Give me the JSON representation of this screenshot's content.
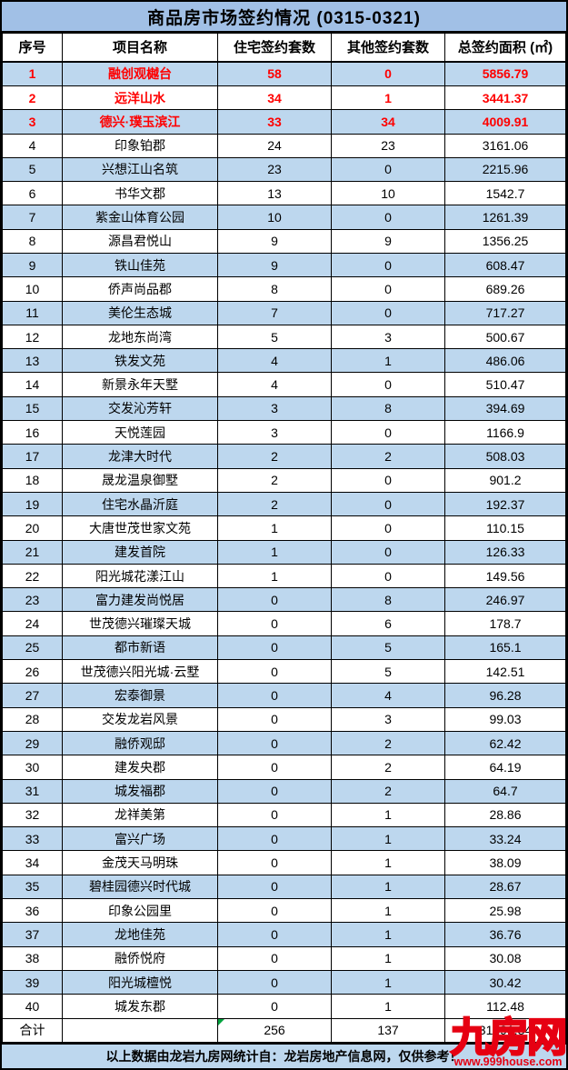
{
  "title": "商品房市场签约情况 (0315-0321)",
  "chart_data": {
    "type": "table",
    "title": "商品房市场签约情况 (0315-0321)",
    "columns": [
      "序号",
      "项目名称",
      "住宅签约套数",
      "其他签约套数",
      "总签约面积 (㎡)"
    ],
    "highlight_top_rows": 3,
    "rows": [
      [
        "1",
        "融创观樾台",
        "58",
        "0",
        "5856.79"
      ],
      [
        "2",
        "远洋山水",
        "34",
        "1",
        "3441.37"
      ],
      [
        "3",
        "德兴·璞玉滨江",
        "33",
        "34",
        "4009.91"
      ],
      [
        "4",
        "印象铂郡",
        "24",
        "23",
        "3161.06"
      ],
      [
        "5",
        "兴想江山名筑",
        "23",
        "0",
        "2215.96"
      ],
      [
        "6",
        "书华文郡",
        "13",
        "10",
        "1542.7"
      ],
      [
        "7",
        "紫金山体育公园",
        "10",
        "0",
        "1261.39"
      ],
      [
        "8",
        "源昌君悦山",
        "9",
        "9",
        "1356.25"
      ],
      [
        "9",
        "铁山佳苑",
        "9",
        "0",
        "608.47"
      ],
      [
        "10",
        "侨声尚品郡",
        "8",
        "0",
        "689.26"
      ],
      [
        "11",
        "美伦生态城",
        "7",
        "0",
        "717.27"
      ],
      [
        "12",
        "龙地东尚湾",
        "5",
        "3",
        "500.67"
      ],
      [
        "13",
        "铁发文苑",
        "4",
        "1",
        "486.06"
      ],
      [
        "14",
        "新景永年天墅",
        "4",
        "0",
        "510.47"
      ],
      [
        "15",
        "交发沁芳轩",
        "3",
        "8",
        "394.69"
      ],
      [
        "16",
        "天悦莲园",
        "3",
        "0",
        "1166.9"
      ],
      [
        "17",
        "龙津大时代",
        "2",
        "2",
        "508.03"
      ],
      [
        "18",
        "晟龙温泉御墅",
        "2",
        "0",
        "901.2"
      ],
      [
        "19",
        "住宅水晶沂庭",
        "2",
        "0",
        "192.37"
      ],
      [
        "20",
        "大唐世茂世家文苑",
        "1",
        "0",
        "110.15"
      ],
      [
        "21",
        "建发首院",
        "1",
        "0",
        "126.33"
      ],
      [
        "22",
        "阳光城花漾江山",
        "1",
        "0",
        "149.56"
      ],
      [
        "23",
        "富力建发尚悦居",
        "0",
        "8",
        "246.97"
      ],
      [
        "24",
        "世茂德兴璀璨天城",
        "0",
        "6",
        "178.7"
      ],
      [
        "25",
        "都市新语",
        "0",
        "5",
        "165.1"
      ],
      [
        "26",
        "世茂德兴阳光城·云墅",
        "0",
        "5",
        "142.51"
      ],
      [
        "27",
        "宏泰御景",
        "0",
        "4",
        "96.28"
      ],
      [
        "28",
        "交发龙岩风景",
        "0",
        "3",
        "99.03"
      ],
      [
        "29",
        "融侨观邸",
        "0",
        "2",
        "62.42"
      ],
      [
        "30",
        "建发央郡",
        "0",
        "2",
        "64.19"
      ],
      [
        "31",
        "城发福郡",
        "0",
        "2",
        "64.7"
      ],
      [
        "32",
        "龙祥美第",
        "0",
        "1",
        "28.86"
      ],
      [
        "33",
        "富兴广场",
        "0",
        "1",
        "33.24"
      ],
      [
        "34",
        "金茂天马明珠",
        "0",
        "1",
        "38.09"
      ],
      [
        "35",
        "碧桂园德兴时代城",
        "0",
        "1",
        "28.67"
      ],
      [
        "36",
        "印象公园里",
        "0",
        "1",
        "25.98"
      ],
      [
        "37",
        "龙地佳苑",
        "0",
        "1",
        "36.76"
      ],
      [
        "38",
        "融侨悦府",
        "0",
        "1",
        "30.08"
      ],
      [
        "39",
        "阳光城檀悦",
        "0",
        "1",
        "30.42"
      ],
      [
        "40",
        "城发东郡",
        "0",
        "1",
        "112.48"
      ]
    ],
    "total": {
      "label": "合计",
      "project": "",
      "residential": "256",
      "other": "137",
      "area": "31391.34"
    }
  },
  "footer": {
    "note": "以上数据由龙岩九房网统计自：龙岩房地产信息网，仅供参考！"
  },
  "watermark": {
    "logo": "九房网",
    "site": "www.999house.com"
  },
  "colors": {
    "title_bg": "#a1c0e6",
    "stripe_bg": "#bdd7ee",
    "footer_bg": "#bdd7ee",
    "highlight_text": "#ff0000",
    "border": "#000000",
    "watermark_red": "#e60012",
    "marker_green": "#00a33e"
  }
}
